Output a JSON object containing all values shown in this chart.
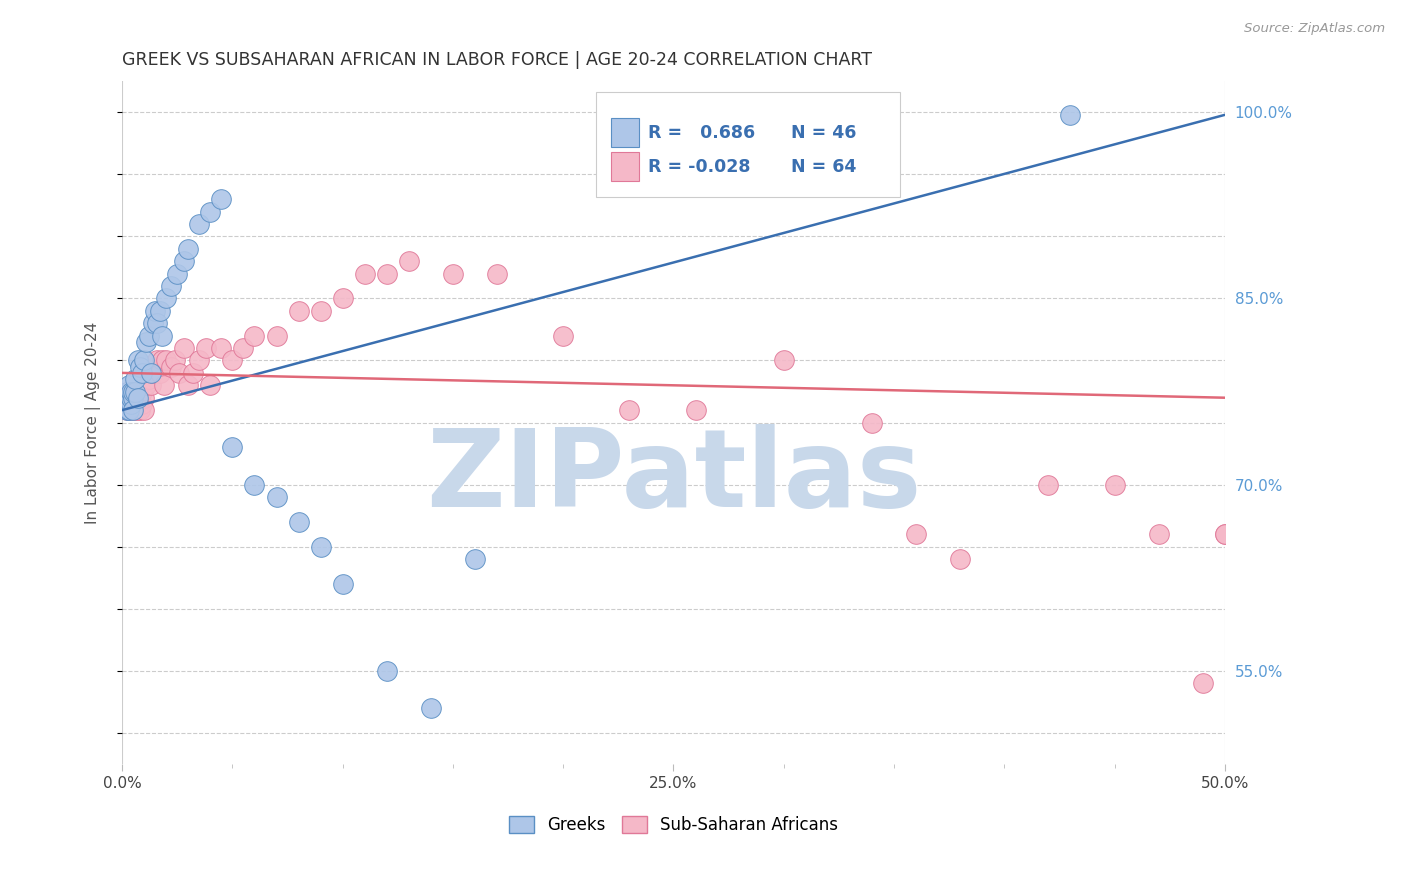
{
  "title": "GREEK VS SUBSAHARAN AFRICAN IN LABOR FORCE | AGE 20-24 CORRELATION CHART",
  "source": "Source: ZipAtlas.com",
  "ylabel": "In Labor Force | Age 20-24",
  "xmin": 0.0,
  "xmax": 0.5,
  "ymin": 0.475,
  "ymax": 1.025,
  "xtick_positions": [
    0.0,
    0.25,
    0.5
  ],
  "xtick_labels": [
    "0.0%",
    "25.0%",
    "50.0%"
  ],
  "ytick_positions": [
    0.5,
    0.55,
    0.6,
    0.65,
    0.7,
    0.75,
    0.8,
    0.85,
    0.9,
    0.95,
    1.0
  ],
  "right_ytick_labeled": [
    0.55,
    0.7,
    0.85,
    1.0
  ],
  "right_ytick_labels": [
    "55.0%",
    "70.0%",
    "85.0%",
    "100.0%"
  ],
  "blue_fill": "#aec6e8",
  "blue_edge": "#5a8fc4",
  "pink_fill": "#f5b8c8",
  "pink_edge": "#e07898",
  "blue_line_color": "#3a6fb0",
  "pink_line_color": "#e06878",
  "right_axis_color": "#5b9bd5",
  "watermark_text": "ZIPatlas",
  "watermark_color": "#c8d8ea",
  "background_color": "#ffffff",
  "legend_box_color": "#ffffff",
  "legend_box_edge": "#cccccc",
  "legend_R_N_color": "#3a6fb0",
  "greek_x": [
    0.001,
    0.002,
    0.002,
    0.003,
    0.003,
    0.003,
    0.004,
    0.004,
    0.004,
    0.005,
    0.005,
    0.005,
    0.006,
    0.006,
    0.007,
    0.007,
    0.008,
    0.009,
    0.01,
    0.011,
    0.012,
    0.013,
    0.014,
    0.015,
    0.016,
    0.017,
    0.018,
    0.02,
    0.022,
    0.025,
    0.028,
    0.03,
    0.035,
    0.04,
    0.045,
    0.05,
    0.06,
    0.07,
    0.08,
    0.09,
    0.1,
    0.12,
    0.14,
    0.16,
    0.25,
    0.43
  ],
  "greek_y": [
    0.77,
    0.76,
    0.775,
    0.77,
    0.78,
    0.76,
    0.765,
    0.77,
    0.775,
    0.77,
    0.76,
    0.775,
    0.775,
    0.785,
    0.8,
    0.77,
    0.795,
    0.79,
    0.8,
    0.815,
    0.82,
    0.79,
    0.83,
    0.84,
    0.83,
    0.84,
    0.82,
    0.85,
    0.86,
    0.87,
    0.88,
    0.89,
    0.91,
    0.92,
    0.93,
    0.73,
    0.7,
    0.69,
    0.67,
    0.65,
    0.62,
    0.55,
    0.52,
    0.64,
    0.995,
    0.998
  ],
  "subsaharan_x": [
    0.001,
    0.002,
    0.002,
    0.003,
    0.003,
    0.004,
    0.004,
    0.005,
    0.005,
    0.006,
    0.006,
    0.007,
    0.007,
    0.008,
    0.008,
    0.009,
    0.009,
    0.01,
    0.01,
    0.011,
    0.012,
    0.013,
    0.014,
    0.015,
    0.016,
    0.017,
    0.018,
    0.019,
    0.02,
    0.022,
    0.024,
    0.026,
    0.028,
    0.03,
    0.032,
    0.035,
    0.038,
    0.04,
    0.045,
    0.05,
    0.055,
    0.06,
    0.07,
    0.08,
    0.09,
    0.1,
    0.11,
    0.12,
    0.13,
    0.15,
    0.17,
    0.2,
    0.23,
    0.26,
    0.3,
    0.34,
    0.36,
    0.38,
    0.42,
    0.45,
    0.47,
    0.49,
    0.5,
    0.5
  ],
  "subsaharan_y": [
    0.77,
    0.775,
    0.76,
    0.77,
    0.76,
    0.775,
    0.765,
    0.77,
    0.76,
    0.775,
    0.76,
    0.775,
    0.76,
    0.77,
    0.76,
    0.765,
    0.775,
    0.77,
    0.76,
    0.78,
    0.785,
    0.78,
    0.79,
    0.795,
    0.8,
    0.79,
    0.8,
    0.78,
    0.8,
    0.795,
    0.8,
    0.79,
    0.81,
    0.78,
    0.79,
    0.8,
    0.81,
    0.78,
    0.81,
    0.8,
    0.81,
    0.82,
    0.82,
    0.84,
    0.84,
    0.85,
    0.87,
    0.87,
    0.88,
    0.87,
    0.87,
    0.82,
    0.76,
    0.76,
    0.8,
    0.75,
    0.66,
    0.64,
    0.7,
    0.7,
    0.66,
    0.54,
    0.66,
    0.66
  ],
  "blue_trendline_x": [
    0.0,
    0.5
  ],
  "blue_trendline_y": [
    0.76,
    0.998
  ],
  "pink_trendline_x": [
    0.0,
    0.5
  ],
  "pink_trendline_y": [
    0.79,
    0.77
  ]
}
